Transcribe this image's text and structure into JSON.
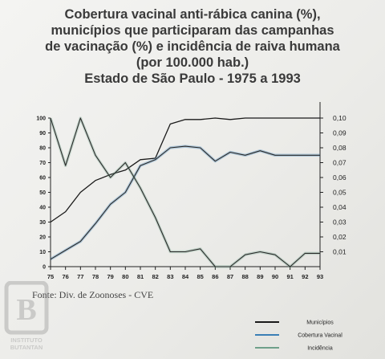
{
  "title_lines": [
    "Cobertura vacinal anti-rábica canina (%),",
    "municípios que participaram das campanhas",
    "de vacinação (%) e incidência de raiva humana",
    "(por 100.000 hab.)",
    "Estado de São Paulo - 1975 a 1993"
  ],
  "source": "Fonte: Div. de Zoonoses - CVE",
  "logo_text": "INSTITUTO BUTANTAN",
  "chart_data": {
    "type": "line",
    "x": [
      "75",
      "76",
      "77",
      "78",
      "79",
      "80",
      "81",
      "82",
      "83",
      "84",
      "85",
      "86",
      "87",
      "88",
      "89",
      "90",
      "91",
      "92",
      "93"
    ],
    "y_left_ticks": [
      "100",
      "90",
      "80",
      "70",
      "60",
      "50",
      "40",
      "30",
      "20",
      "10",
      "0"
    ],
    "y_right_ticks": [
      "0,10",
      "0,09",
      "0,08",
      "0,07",
      "0,06",
      "0,05",
      "0,04",
      "0,03",
      "0,02",
      "0,01"
    ],
    "ylim_left": [
      0,
      100
    ],
    "ylim_right": [
      0,
      0.1
    ],
    "colors": {
      "municipios": "#1a1a1a",
      "cobertura": "#3a7fb5",
      "incidencia": "#6fa08a"
    },
    "series": [
      {
        "name": "Municípios",
        "axis": "left",
        "values": [
          30,
          37,
          50,
          58,
          62,
          65,
          72,
          73,
          96,
          99,
          99,
          100,
          99,
          100,
          100,
          100,
          100,
          100,
          100
        ]
      },
      {
        "name": "Cobertura Vacinal",
        "axis": "left",
        "values": [
          5,
          11,
          17,
          29,
          42,
          50,
          68,
          72,
          80,
          81,
          80,
          71,
          77,
          75,
          78,
          75,
          75,
          75,
          75
        ]
      },
      {
        "name": "Incidência",
        "axis": "right",
        "values": [
          0.1,
          0.068,
          0.1,
          0.075,
          0.06,
          0.07,
          0.053,
          0.033,
          0.01,
          0.01,
          0.012,
          0,
          0,
          0.008,
          0.01,
          0.008,
          0,
          0.009,
          0.009
        ]
      }
    ]
  }
}
